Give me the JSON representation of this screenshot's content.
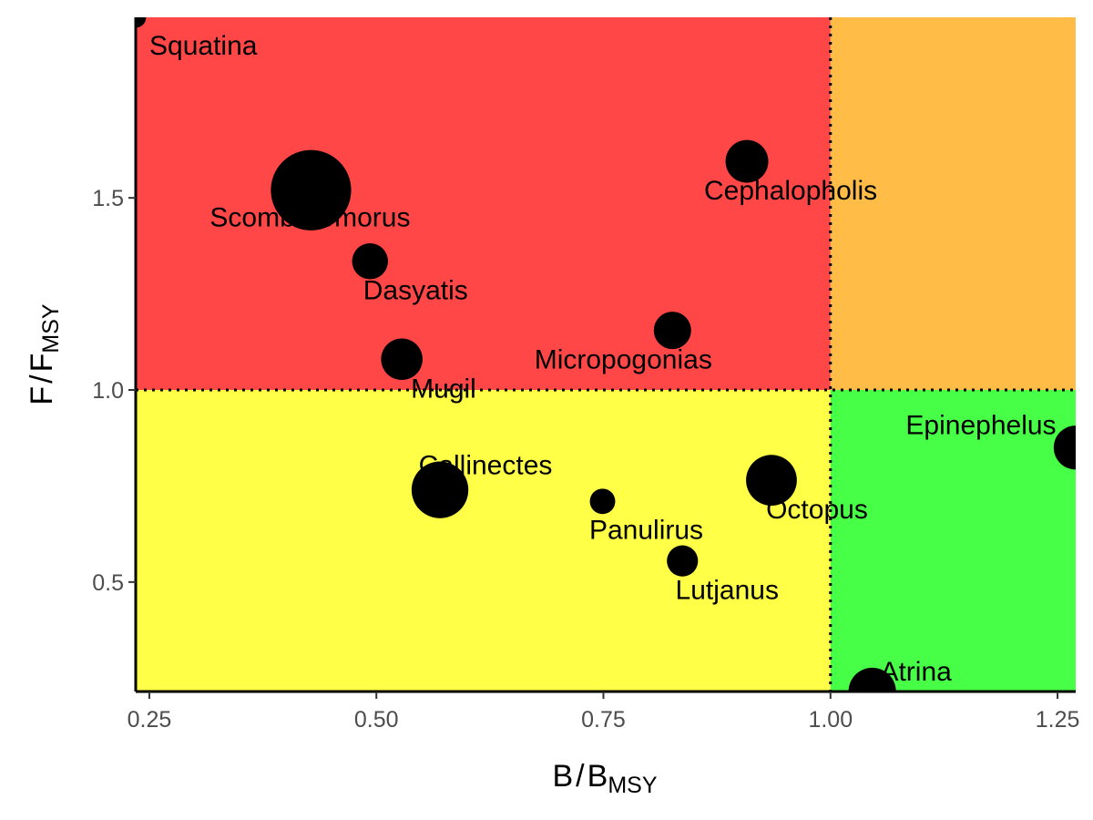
{
  "chart_data": {
    "type": "scatter",
    "title": "",
    "xlabel": {
      "main": "B",
      "sep": "/",
      "base": "B",
      "sub": "MSY"
    },
    "ylabel": {
      "main": "F",
      "sep": "/",
      "base": "F",
      "sub": "MSY"
    },
    "xlim": [
      0.235,
      1.27
    ],
    "ylim": [
      0.215,
      1.97
    ],
    "xticks": [
      0.25,
      0.5,
      0.75,
      1.0,
      1.25
    ],
    "xtick_labels": [
      "0.25",
      "0.50",
      "0.75",
      "1.00",
      "1.25"
    ],
    "yticks": [
      0.5,
      1.0,
      1.5
    ],
    "ytick_labels": [
      "0.5",
      "1.0",
      "1.5"
    ],
    "reference_lines": {
      "x": 1.0,
      "y": 1.0,
      "style": "dotted"
    },
    "quadrants": {
      "overfished_overfishing": "#ff4747",
      "healthy_overfishing": "#ffbd47",
      "overfished_no_overfishing": "#ffff47",
      "healthy_no_overfishing": "#47ff47"
    },
    "grid": false,
    "legend": "none",
    "points": [
      {
        "label": "Squatina",
        "x": 0.235,
        "y": 1.97,
        "size": 0.4
      },
      {
        "label": "Scomberomorus",
        "x": 0.428,
        "y": 1.52,
        "size": 6.0
      },
      {
        "label": "Dasyatis",
        "x": 0.493,
        "y": 1.335,
        "size": 1.2
      },
      {
        "label": "Mugil",
        "x": 0.528,
        "y": 1.08,
        "size": 1.6
      },
      {
        "label": "Cephalopholis",
        "x": 0.908,
        "y": 1.595,
        "size": 1.7
      },
      {
        "label": "Micropogonias",
        "x": 0.826,
        "y": 1.155,
        "size": 1.3
      },
      {
        "label": "Callinectes",
        "x": 0.57,
        "y": 0.74,
        "size": 3.0
      },
      {
        "label": "Panulirus",
        "x": 0.749,
        "y": 0.71,
        "size": 0.6
      },
      {
        "label": "Octopus",
        "x": 0.935,
        "y": 0.765,
        "size": 2.4
      },
      {
        "label": "Lutjanus",
        "x": 0.837,
        "y": 0.555,
        "size": 0.9
      },
      {
        "label": "Epinephelus",
        "x": 1.27,
        "y": 0.85,
        "size": 1.8
      },
      {
        "label": "Atrina",
        "x": 1.046,
        "y": 0.215,
        "size": 2.1
      }
    ]
  }
}
